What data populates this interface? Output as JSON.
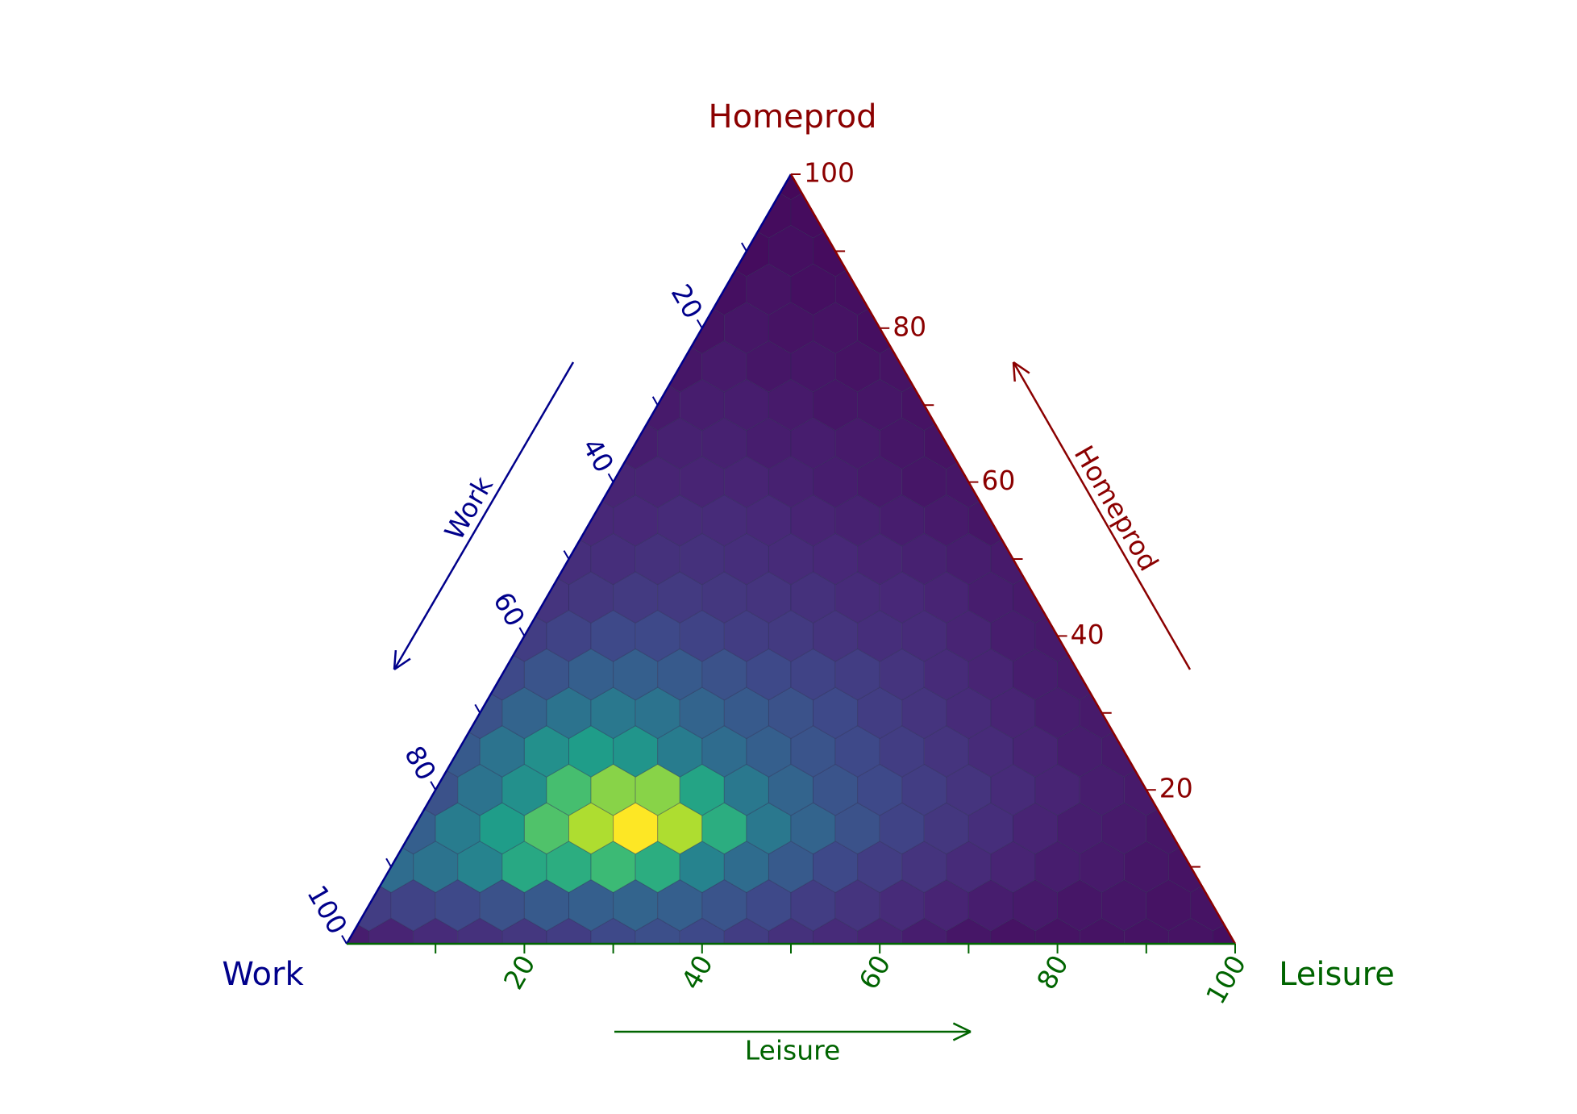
{
  "chart_data": {
    "type": "ternary_hexbin",
    "corner_labels": {
      "top": "Homeprod",
      "left": "Work",
      "right": "Leisure"
    },
    "axes": {
      "work": {
        "title": "Work",
        "color": "#00008b",
        "ticks": [
          20,
          40,
          60,
          80,
          100
        ],
        "minor_ticks": [
          10,
          30,
          50,
          70,
          90
        ]
      },
      "homeprod": {
        "title": "Homeprod",
        "color": "#8b0000",
        "ticks": [
          20,
          40,
          60,
          80,
          100
        ],
        "minor_ticks": [
          10,
          30,
          50,
          70,
          90
        ]
      },
      "leisure": {
        "title": "Leisure",
        "color": "#006400",
        "ticks": [
          20,
          40,
          60,
          80,
          100
        ],
        "minor_ticks": [
          10,
          30,
          50,
          70,
          90
        ]
      }
    },
    "hexbin": {
      "colormap": "viridis",
      "rows": [
        [
          8,
          10,
          12,
          14,
          16,
          18,
          22,
          24,
          22,
          18,
          14,
          12,
          10,
          8,
          6,
          5,
          5,
          5,
          5,
          5,
          4
        ],
        [
          18,
          20,
          22,
          25,
          28,
          30,
          32,
          30,
          26,
          22,
          18,
          15,
          12,
          10,
          8,
          7,
          6,
          6,
          5,
          5
        ],
        [
          35,
          38,
          45,
          60,
          62,
          68,
          62,
          45,
          35,
          28,
          22,
          18,
          15,
          12,
          10,
          8,
          7,
          6,
          5
        ],
        [
          30,
          42,
          55,
          72,
          88,
          100,
          88,
          62,
          40,
          32,
          25,
          20,
          16,
          13,
          10,
          8,
          7,
          6
        ],
        [
          25,
          38,
          50,
          70,
          82,
          82,
          58,
          40,
          32,
          26,
          22,
          18,
          15,
          12,
          10,
          8,
          7
        ],
        [
          28,
          38,
          50,
          55,
          52,
          42,
          35,
          30,
          26,
          22,
          18,
          15,
          12,
          10,
          8,
          7
        ],
        [
          25,
          32,
          38,
          40,
          38,
          32,
          28,
          25,
          22,
          18,
          15,
          12,
          10,
          8,
          7
        ],
        [
          22,
          26,
          30,
          30,
          28,
          25,
          22,
          20,
          18,
          15,
          12,
          10,
          8,
          7
        ],
        [
          18,
          20,
          22,
          22,
          20,
          18,
          17,
          15,
          13,
          12,
          10,
          8,
          7
        ],
        [
          15,
          16,
          17,
          17,
          16,
          15,
          14,
          12,
          11,
          10,
          8,
          7
        ],
        [
          13,
          13,
          14,
          14,
          13,
          12,
          11,
          10,
          9,
          8,
          7
        ],
        [
          11,
          11,
          12,
          12,
          11,
          10,
          9,
          8,
          7,
          6
        ],
        [
          10,
          10,
          10,
          10,
          9,
          8,
          7,
          6,
          6
        ],
        [
          8,
          9,
          9,
          8,
          8,
          7,
          6,
          5
        ],
        [
          7,
          8,
          8,
          7,
          6,
          6,
          5
        ],
        [
          6,
          7,
          6,
          6,
          5,
          5
        ],
        [
          5,
          6,
          5,
          5,
          4
        ],
        [
          4,
          5,
          4,
          4
        ],
        [
          3,
          4,
          3
        ],
        [
          3,
          3
        ],
        [
          2
        ]
      ]
    }
  }
}
